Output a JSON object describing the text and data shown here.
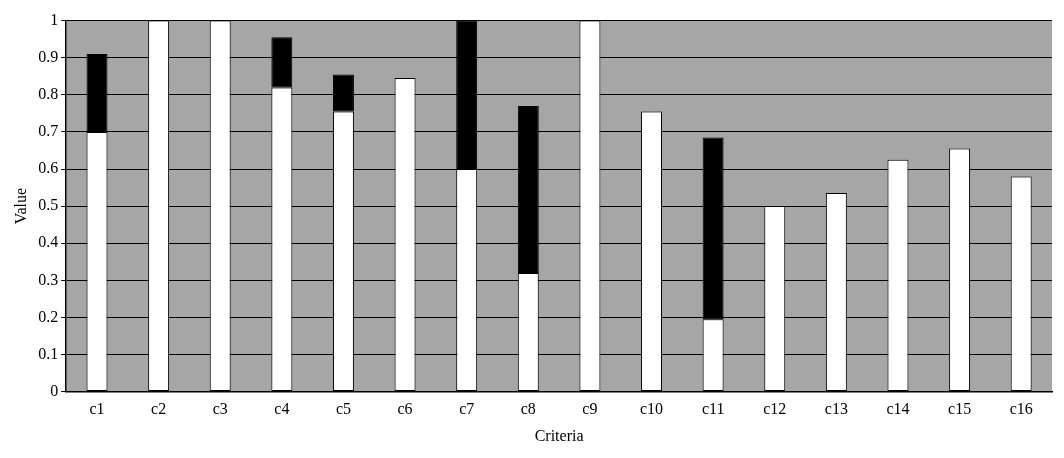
{
  "chart_data": {
    "type": "bar",
    "xlabel": "Criteria",
    "ylabel": "Value",
    "categories": [
      "c1",
      "c2",
      "c3",
      "c4",
      "c5",
      "c6",
      "c7",
      "c8",
      "c9",
      "c10",
      "c11",
      "c12",
      "c13",
      "c14",
      "c15",
      "c16"
    ],
    "stacked": true,
    "ylim": [
      0,
      1
    ],
    "yticks": [
      0,
      0.1,
      0.2,
      0.3,
      0.4,
      0.5,
      0.6,
      0.7,
      0.8,
      0.9,
      1
    ],
    "grid": "y",
    "legend": false,
    "series": [
      {
        "color": "#ffffff",
        "values": [
          0.7,
          1,
          1,
          0.82,
          0.755,
          0.845,
          0.6,
          0.32,
          1,
          0.755,
          0.195,
          0.5,
          0.535,
          0.625,
          0.655,
          0.58
        ]
      },
      {
        "color": "#000000",
        "values": [
          0.21,
          null,
          null,
          0.135,
          0.1,
          null,
          0.4,
          0.45,
          null,
          null,
          0.49,
          null,
          null,
          null,
          null,
          null
        ]
      }
    ]
  }
}
